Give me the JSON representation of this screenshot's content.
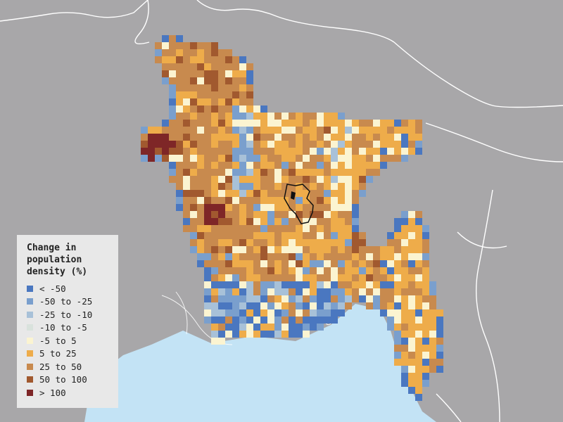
{
  "map": {
    "colors": {
      "land": "#a8a7a9",
      "sea": "#c3e3f5",
      "border": "#ffffff",
      "river": "#ffffff"
    }
  },
  "legend": {
    "title": "Change in population density (%)",
    "items": [
      {
        "label": "< -50",
        "color": "#4a77c0"
      },
      {
        "label": "-50 to -25",
        "color": "#7a9fcd"
      },
      {
        "label": "-25 to -10",
        "color": "#a8c1d8"
      },
      {
        "label": "-10 to -5",
        "color": "#d9e2dc"
      },
      {
        "label": "-5 to 5",
        "color": "#fbf4d1"
      },
      {
        "label": "5 to 25",
        "color": "#eeac4a"
      },
      {
        "label": "25 to 50",
        "color": "#c88a4e"
      },
      {
        "label": "50 to 100",
        "color": "#a1592f"
      },
      {
        "label": "> 100",
        "color": "#7e2627"
      }
    ]
  }
}
